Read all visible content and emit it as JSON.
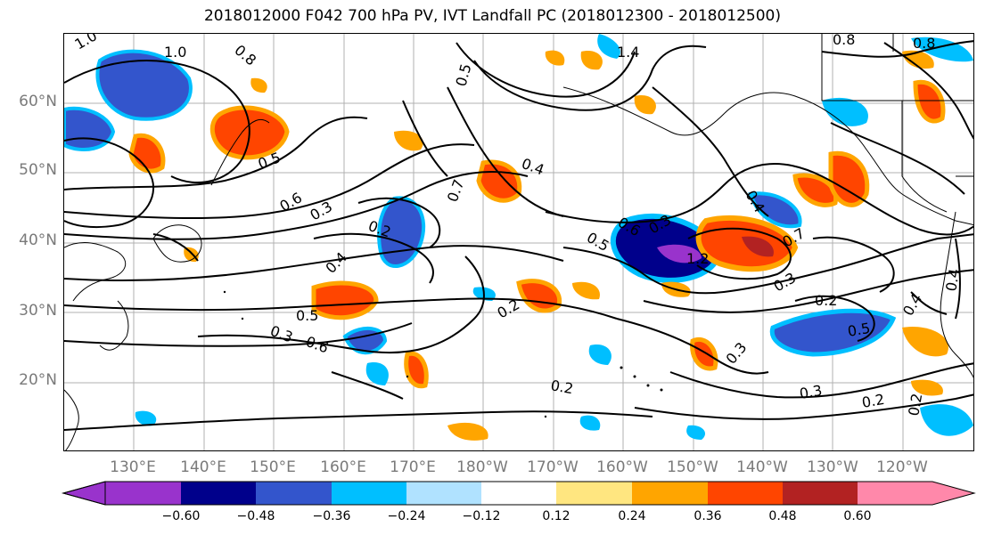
{
  "title": "2018012000 F042 700 hPa PV, IVT Landfall PC (2018012300 - 2018012500)",
  "lat_labels": [
    "60°N",
    "50°N",
    "40°N",
    "30°N",
    "20°N"
  ],
  "lon_labels": [
    "130°E",
    "140°E",
    "150°E",
    "160°E",
    "170°E",
    "180°W",
    "170°W",
    "160°W",
    "150°W",
    "140°W",
    "130°W",
    "120°W"
  ],
  "contour_labels": [
    "1.0",
    "1.0",
    "0.8",
    "0.8",
    "1.4",
    "0.8",
    "0.5",
    "0.5",
    "0.6",
    "0.3",
    "0.2",
    "0.4",
    "0.7",
    "0.4",
    "0.6",
    "0.5",
    "0.3",
    "0.2",
    "0.4",
    "0.7",
    "0.3",
    "0.2",
    "0.5",
    "0.4",
    "0.3",
    "0.2",
    "0.2",
    "0.3",
    "0.5",
    "0.6",
    "0.3",
    "0.4",
    "1.2",
    "0.2"
  ],
  "colorbar": {
    "ticks": [
      "−0.60",
      "−0.48",
      "−0.36",
      "−0.24",
      "−0.12",
      "0.12",
      "0.24",
      "0.36",
      "0.48",
      "0.60"
    ],
    "colors": [
      "#9933cc",
      "#00008b",
      "#3355cc",
      "#00bfff",
      "#b0e2ff",
      "#ffffff",
      "#ffe680",
      "#ffa500",
      "#ff4500",
      "#b22222",
      "#ff88aa"
    ]
  }
}
